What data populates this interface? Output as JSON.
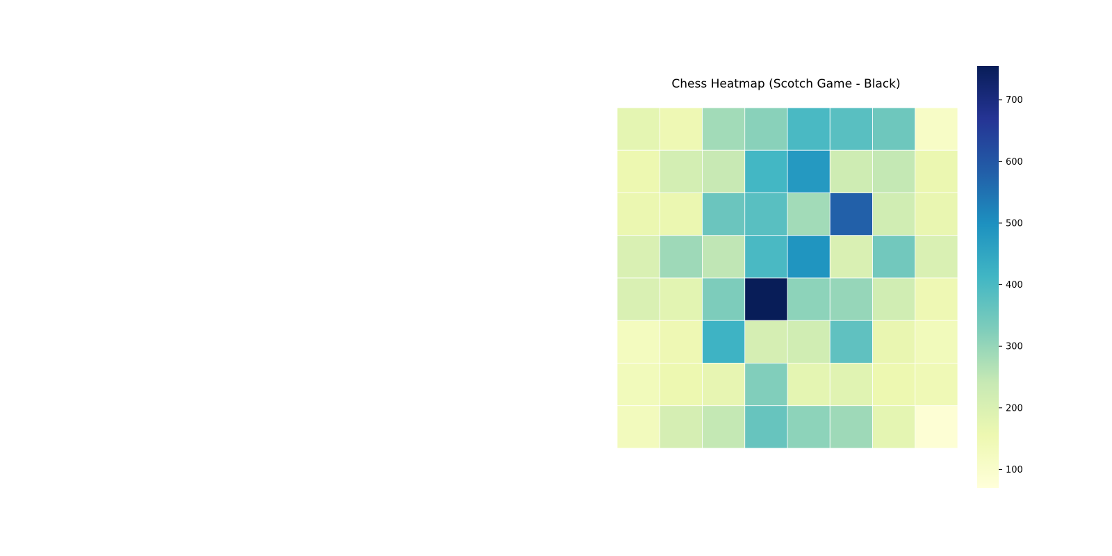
{
  "chart_data": {
    "type": "heatmap",
    "title": "Chess Heatmap (Scotch Game - Black)",
    "xlabel": "",
    "ylabel": "",
    "rows": 8,
    "cols": 8,
    "values": [
      [
        175,
        150,
        285,
        315,
        400,
        380,
        350,
        110
      ],
      [
        155,
        215,
        240,
        410,
        480,
        225,
        245,
        160
      ],
      [
        160,
        160,
        355,
        380,
        285,
        580,
        220,
        165
      ],
      [
        200,
        290,
        250,
        400,
        490,
        200,
        345,
        200
      ],
      [
        200,
        180,
        330,
        760,
        310,
        300,
        220,
        150
      ],
      [
        125,
        150,
        420,
        210,
        220,
        370,
        165,
        135
      ],
      [
        135,
        155,
        170,
        325,
        175,
        185,
        155,
        145
      ],
      [
        130,
        210,
        245,
        360,
        310,
        290,
        175,
        80
      ]
    ],
    "colormap": [
      "#ffffd9",
      "#edf8b1",
      "#c7e9b4",
      "#7fcdbb",
      "#41b6c4",
      "#1d91c0",
      "#225ea8",
      "#253494",
      "#081d58"
    ],
    "vmin": 70,
    "vmax": 755,
    "colorbar_ticks": [
      100,
      200,
      300,
      400,
      500,
      600,
      700
    ],
    "gridlines": true,
    "gridline_color": "#ffffff"
  }
}
